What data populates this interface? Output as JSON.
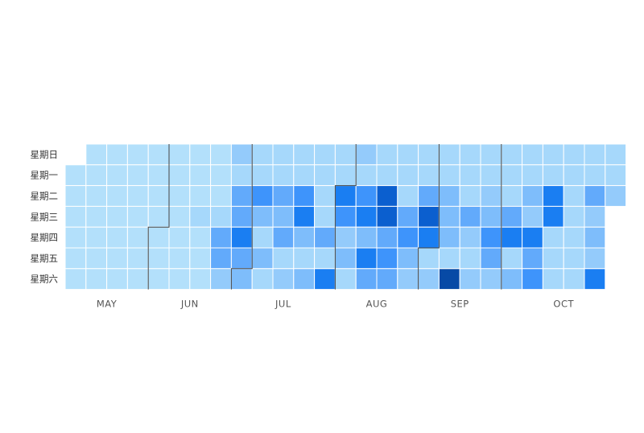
{
  "chart_data": {
    "type": "heatmap",
    "title": "",
    "day_labels": [
      "星期日",
      "星期一",
      "星期二",
      "星期三",
      "星期四",
      "星期五",
      "星期六"
    ],
    "months": [
      {
        "label": "MAY",
        "first_week": 0,
        "first_day": 1
      },
      {
        "label": "JUN",
        "first_week": 4,
        "first_day": 4
      },
      {
        "label": "JUL",
        "first_week": 8,
        "first_day": 6
      },
      {
        "label": "AUG",
        "first_week": 13,
        "first_day": 2
      },
      {
        "label": "SEP",
        "first_week": 17,
        "first_day": 5
      },
      {
        "label": "OCT",
        "first_week": 21,
        "first_day": 0
      }
    ],
    "scale": {
      "min": 0,
      "max": 10
    },
    "colors": [
      "#b3e0fb",
      "#a6d8fb",
      "#94cbfb",
      "#7ebdfb",
      "#62aafb",
      "#3e94fb",
      "#1a7ef2",
      "#0b5fcf",
      "#074aa6"
    ],
    "weeks": [
      [
        null,
        0,
        0,
        0,
        0,
        0,
        0
      ],
      [
        0,
        0,
        0,
        0,
        0,
        0,
        0
      ],
      [
        0,
        0,
        0,
        0,
        0,
        0,
        0
      ],
      [
        0,
        0,
        0,
        0,
        0,
        0,
        0
      ],
      [
        0,
        0,
        0,
        0,
        0,
        0,
        0
      ],
      [
        0,
        0,
        0,
        0,
        0,
        0,
        0
      ],
      [
        0,
        0,
        0,
        1,
        0,
        0,
        0
      ],
      [
        0,
        0,
        0,
        1,
        4,
        4,
        2
      ],
      [
        2,
        1,
        4,
        4,
        6,
        4,
        3
      ],
      [
        1,
        1,
        5,
        3,
        1,
        3,
        1
      ],
      [
        1,
        1,
        4,
        3,
        4,
        1,
        2
      ],
      [
        1,
        1,
        5,
        6,
        3,
        1,
        3
      ],
      [
        1,
        1,
        1,
        1,
        4,
        1,
        6
      ],
      [
        1,
        1,
        6,
        5,
        2,
        3,
        1
      ],
      [
        2,
        1,
        5,
        6,
        3,
        6,
        4
      ],
      [
        1,
        1,
        7,
        7,
        4,
        5,
        4
      ],
      [
        1,
        1,
        1,
        4,
        5,
        3,
        2
      ],
      [
        1,
        1,
        4,
        7,
        6,
        1,
        2
      ],
      [
        1,
        1,
        3,
        3,
        3,
        1,
        8
      ],
      [
        1,
        1,
        1,
        4,
        2,
        1,
        2
      ],
      [
        1,
        1,
        2,
        3,
        5,
        4,
        2
      ],
      [
        1,
        1,
        1,
        4,
        6,
        1,
        3
      ],
      [
        1,
        1,
        3,
        2,
        6,
        4,
        5
      ],
      [
        1,
        1,
        6,
        6,
        1,
        1,
        1
      ],
      [
        1,
        1,
        1,
        1,
        1,
        1,
        1
      ],
      [
        1,
        1,
        4,
        2,
        3,
        2,
        6
      ],
      [
        1,
        1,
        2,
        null,
        null,
        null,
        null
      ]
    ]
  }
}
